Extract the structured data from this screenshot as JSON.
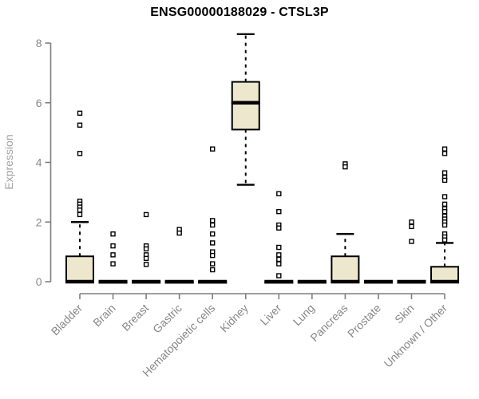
{
  "chart_data": {
    "type": "boxplot",
    "title": "ENSG00000188029 - CTSL3P",
    "xlabel": "",
    "ylabel": "Expression",
    "ylim": [
      0,
      8.5
    ],
    "yticks": [
      0,
      2,
      4,
      6,
      8
    ],
    "grid": false,
    "legend": false,
    "categories": [
      "Bladder",
      "Brain",
      "Breast",
      "Gastric",
      "Hematopoietic cells",
      "Kidney",
      "Liver",
      "Lung",
      "Pancreas",
      "Prostate",
      "Skin",
      "Unknown / Other"
    ],
    "boxes": [
      {
        "category": "Bladder",
        "q1": 0,
        "median": 0,
        "q3": 0.85,
        "whisker_low": 0,
        "whisker_high": 2.0,
        "outliers": [
          5.65,
          5.25,
          4.3,
          2.7,
          2.6,
          2.5,
          2.4,
          2.25
        ]
      },
      {
        "category": "Brain",
        "q1": 0,
        "median": 0,
        "q3": 0,
        "whisker_low": 0,
        "whisker_high": 0,
        "outliers": [
          1.6,
          1.2,
          0.9,
          0.6
        ]
      },
      {
        "category": "Breast",
        "q1": 0,
        "median": 0,
        "q3": 0,
        "whisker_low": 0,
        "whisker_high": 0,
        "outliers": [
          2.25,
          1.2,
          1.1,
          0.9,
          0.78,
          0.58
        ]
      },
      {
        "category": "Gastric",
        "q1": 0,
        "median": 0,
        "q3": 0,
        "whisker_low": 0,
        "whisker_high": 0,
        "outliers": [
          1.75,
          1.63
        ]
      },
      {
        "category": "Hematopoietic cells",
        "q1": 0,
        "median": 0,
        "q3": 0,
        "whisker_low": 0,
        "whisker_high": 0,
        "outliers": [
          4.45,
          2.05,
          1.9,
          1.6,
          1.3,
          1.0,
          0.88,
          0.6,
          0.4
        ]
      },
      {
        "category": "Kidney",
        "q1": 5.1,
        "median": 6.0,
        "q3": 6.7,
        "whisker_low": 3.25,
        "whisker_high": 8.3,
        "outliers": []
      },
      {
        "category": "Liver",
        "q1": 0,
        "median": 0,
        "q3": 0,
        "whisker_low": 0,
        "whisker_high": 0,
        "outliers": [
          2.95,
          2.35,
          1.9,
          1.8,
          1.15,
          0.9,
          0.75,
          0.6,
          0.2
        ]
      },
      {
        "category": "Lung",
        "q1": 0,
        "median": 0,
        "q3": 0,
        "whisker_low": 0,
        "whisker_high": 0,
        "outliers": []
      },
      {
        "category": "Pancreas",
        "q1": 0,
        "median": 0,
        "q3": 0.85,
        "whisker_low": 0,
        "whisker_high": 1.6,
        "outliers": [
          3.95,
          3.85
        ]
      },
      {
        "category": "Prostate",
        "q1": 0,
        "median": 0,
        "q3": 0,
        "whisker_low": 0,
        "whisker_high": 0,
        "outliers": []
      },
      {
        "category": "Skin",
        "q1": 0,
        "median": 0,
        "q3": 0,
        "whisker_low": 0,
        "whisker_high": 0,
        "outliers": [
          2.0,
          1.85,
          1.35
        ]
      },
      {
        "category": "Unknown / Other",
        "q1": 0,
        "median": 0,
        "q3": 0.5,
        "whisker_low": 0,
        "whisker_high": 1.3,
        "outliers": [
          4.45,
          4.3,
          3.65,
          3.5,
          3.4,
          2.85,
          2.6,
          2.45,
          2.35,
          2.2,
          2.1,
          2.0,
          1.9,
          1.6,
          1.5,
          1.4
        ]
      }
    ],
    "colors": {
      "box_fill": "#EDE8CD",
      "box_border": "#000000",
      "median": "#000000",
      "whisker": "#000000",
      "outlier_stroke": "#000000",
      "outlier_fill": "#FFFFFF",
      "axis": "#7F7F7F",
      "tick_label": "#878787",
      "axis_title": "#A3A3A3",
      "title": "#000000"
    }
  }
}
